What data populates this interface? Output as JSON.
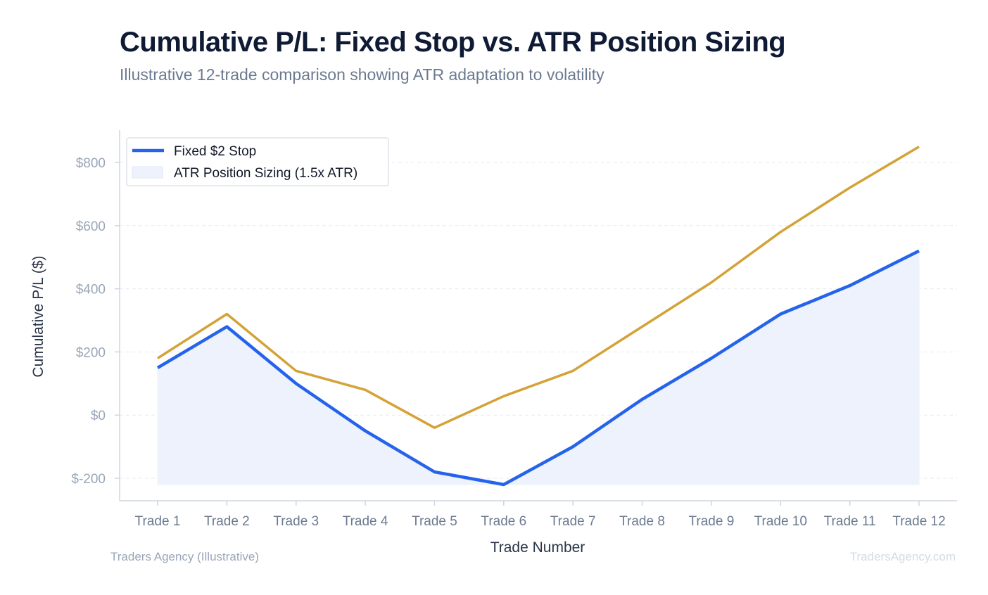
{
  "header": {
    "title": "Cumulative P/L: Fixed Stop vs. ATR Position Sizing",
    "subtitle": "Illustrative 12-trade comparison showing ATR adaptation to volatility"
  },
  "footer": {
    "left": "Traders Agency (Illustrative)",
    "right": "TradersAgency.com"
  },
  "colors": {
    "fixed": "#2563eb",
    "fixed_fill": "#edf2fd",
    "atr": "#d4a237",
    "grid": "#e5e9f0",
    "axis": "#cfd6e0"
  },
  "chart_data": {
    "type": "line",
    "categories": [
      "Trade 1",
      "Trade 2",
      "Trade 3",
      "Trade 4",
      "Trade 5",
      "Trade 6",
      "Trade 7",
      "Trade 8",
      "Trade 9",
      "Trade 10",
      "Trade 11",
      "Trade 12"
    ],
    "series": [
      {
        "name": "Fixed $2 Stop",
        "values": [
          150,
          280,
          100,
          -50,
          -180,
          -220,
          -100,
          50,
          180,
          320,
          410,
          520
        ],
        "fill": true
      },
      {
        "name": "ATR Position Sizing (1.5x ATR)",
        "values": [
          180,
          320,
          140,
          80,
          -40,
          60,
          140,
          280,
          420,
          580,
          720,
          850
        ]
      }
    ],
    "xlabel": "Trade Number",
    "ylabel": "Cumulative P/L ($)",
    "yticks": [
      -200,
      0,
      200,
      400,
      600,
      800
    ],
    "ytick_labels": [
      "$-200",
      "$0",
      "$200",
      "$400",
      "$600",
      "$800"
    ],
    "ylim": [
      -270,
      910
    ],
    "grid": true,
    "legend_position": "top-left"
  }
}
